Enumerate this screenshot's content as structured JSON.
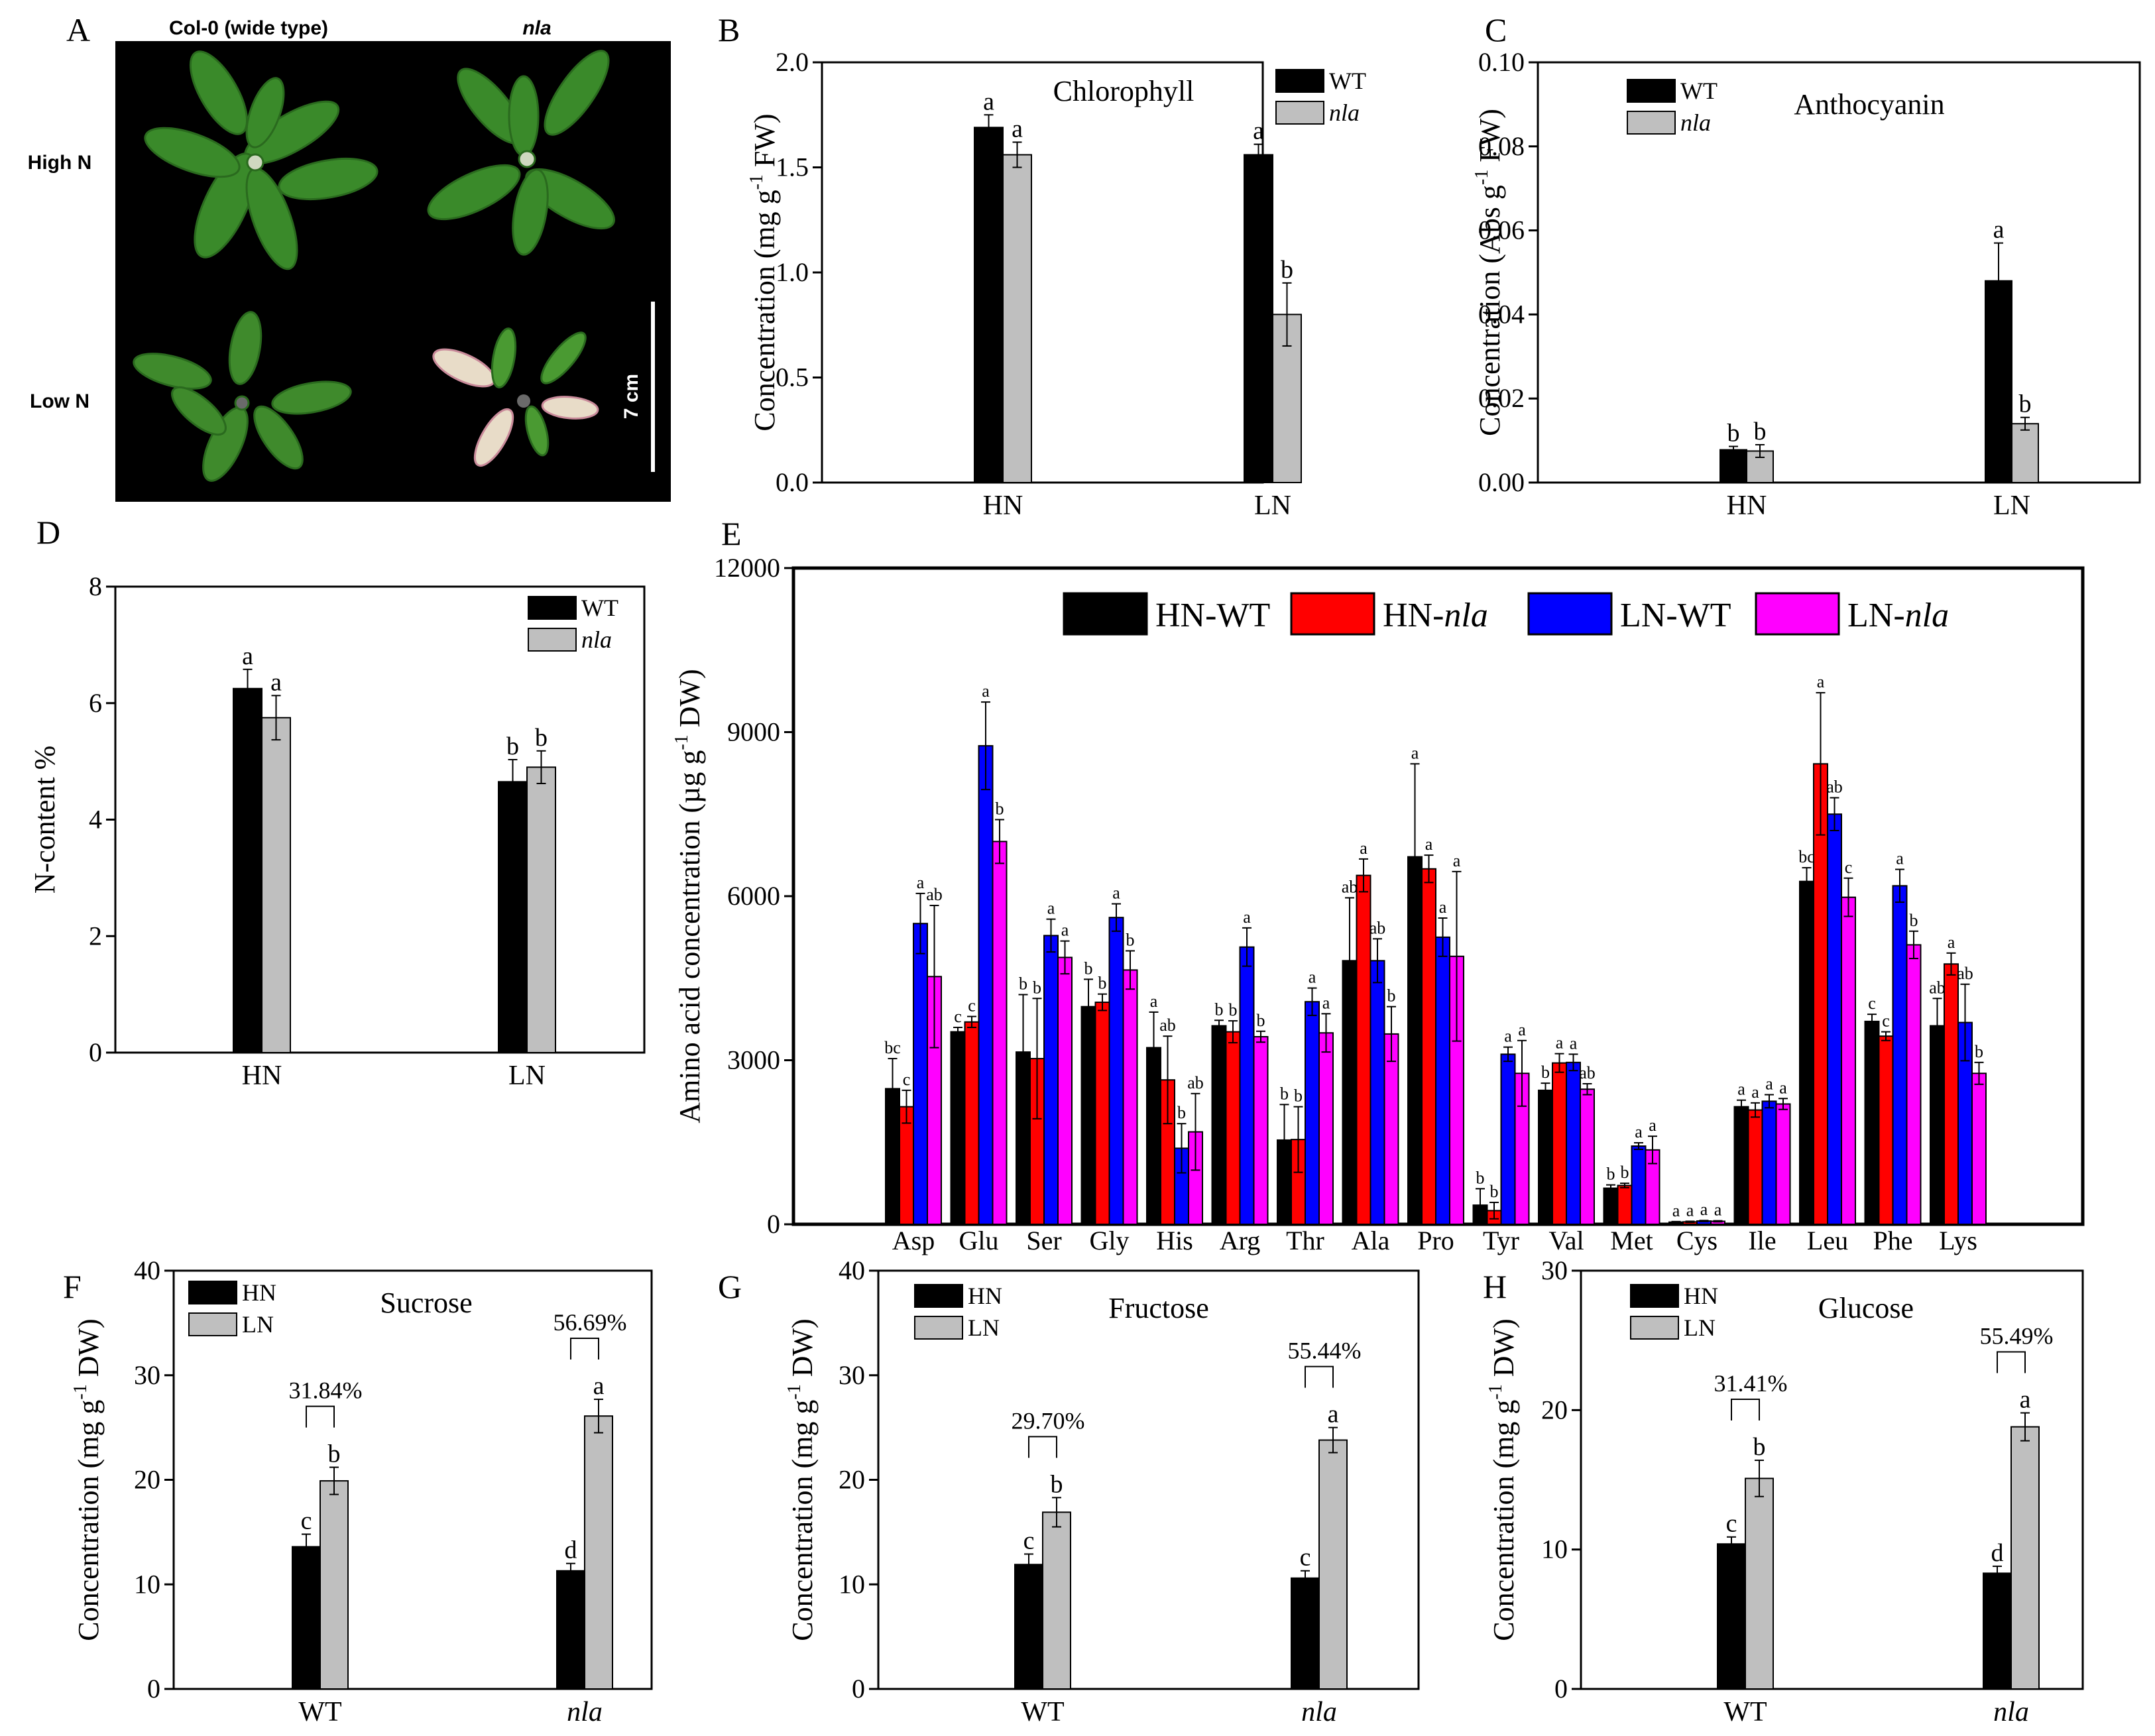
{
  "photo": {
    "letter": "A",
    "col_left": "Col-0 (wide type)",
    "col_right": "nla",
    "row_top": "High N",
    "row_bottom": "Low N",
    "scale": "7 cm"
  },
  "chart_data": [
    {
      "panel": "B",
      "type": "bar",
      "title": "Chlorophyll",
      "categories": [
        "HN",
        "LN"
      ],
      "series": [
        {
          "name": "WT",
          "color": "#000000",
          "values": [
            1.69,
            1.56
          ],
          "errors": [
            0.06,
            0.05
          ],
          "letters": [
            "a",
            "a"
          ]
        },
        {
          "name": "nla",
          "color": "#bfbfbf",
          "values": [
            1.56,
            0.8
          ],
          "errors": [
            0.06,
            0.15
          ],
          "letters": [
            "a",
            "b"
          ]
        }
      ],
      "ylabel": "Concentration (mg g-1 FW)",
      "ylabel_parts": [
        "Concentration (mg g",
        "-1",
        " FW)"
      ],
      "ylim": [
        0,
        2.0
      ],
      "yticks": [
        "0.0",
        "0.5",
        "1.0",
        "1.5",
        "2.0"
      ]
    },
    {
      "panel": "C",
      "type": "bar",
      "title": "Anthocyanin",
      "categories": [
        "HN",
        "LN"
      ],
      "series": [
        {
          "name": "WT",
          "color": "#000000",
          "values": [
            0.0078,
            0.048
          ],
          "errors": [
            0.0008,
            0.009
          ],
          "letters": [
            "b",
            "a"
          ]
        },
        {
          "name": "nla",
          "color": "#bfbfbf",
          "values": [
            0.0075,
            0.014
          ],
          "errors": [
            0.0015,
            0.0015
          ],
          "letters": [
            "b",
            "b"
          ]
        }
      ],
      "ylabel": "Concentration (Abs g-1 FW)",
      "ylabel_parts": [
        "Concentration (Abs g",
        "-1",
        " FW)"
      ],
      "ylim": [
        0,
        0.1
      ],
      "yticks": [
        "0.00",
        "0.02",
        "0.04",
        "0.06",
        "0.08",
        "0.10"
      ]
    },
    {
      "panel": "D",
      "type": "bar",
      "title": "",
      "categories": [
        "HN",
        "LN"
      ],
      "series": [
        {
          "name": "WT",
          "color": "#000000",
          "values": [
            6.25,
            4.65
          ],
          "errors": [
            0.33,
            0.38
          ],
          "letters": [
            "a",
            "b"
          ]
        },
        {
          "name": "nla",
          "color": "#bfbfbf",
          "values": [
            5.75,
            4.9
          ],
          "errors": [
            0.38,
            0.28
          ],
          "letters": [
            "a",
            "b"
          ]
        }
      ],
      "ylabel": "N-content %",
      "ylabel_parts": [
        "N-content %",
        "",
        ""
      ],
      "ylim": [
        0,
        8
      ],
      "yticks": [
        "0",
        "2",
        "4",
        "6",
        "8"
      ]
    },
    {
      "panel": "E",
      "type": "bar",
      "title": "",
      "categories": [
        "Asp",
        "Glu",
        "Ser",
        "Gly",
        "His",
        "Arg",
        "Thr",
        "Ala",
        "Pro",
        "Tyr",
        "Val",
        "Met",
        "Cys",
        "Ile",
        "Leu",
        "Phe",
        "Lys"
      ],
      "series": [
        {
          "name": "HN-WT",
          "color": "#000000",
          "values": [
            2480,
            3520,
            3150,
            3980,
            3230,
            3630,
            1540,
            4820,
            6720,
            350,
            2450,
            660,
            40,
            2150,
            6270,
            3710,
            3630
          ],
          "errors": [
            550,
            80,
            1050,
            500,
            650,
            100,
            650,
            1150,
            1700,
            300,
            130,
            60,
            10,
            120,
            250,
            130,
            500
          ],
          "letters": [
            "bc",
            "c",
            "b",
            "b",
            "a",
            "b",
            "b",
            "ab",
            "a",
            "b",
            "b",
            "b",
            "a",
            "a",
            "bc",
            "c",
            "ab"
          ]
        },
        {
          "name": "HN-nla",
          "color": "#ff0000",
          "values": [
            2150,
            3700,
            3030,
            4060,
            2640,
            3520,
            1550,
            6380,
            6500,
            250,
            2950,
            710,
            45,
            2090,
            8420,
            3440,
            4760
          ],
          "errors": [
            300,
            100,
            1100,
            150,
            800,
            200,
            600,
            300,
            250,
            150,
            170,
            40,
            10,
            130,
            1300,
            80,
            200
          ],
          "letters": [
            "c",
            "c",
            "b",
            "b",
            "ab",
            "b",
            "b",
            "a",
            "a",
            "b",
            "a",
            "b",
            "a",
            "a",
            "a",
            "c",
            "a"
          ]
        },
        {
          "name": "LN-WT",
          "color": "#0000ff",
          "values": [
            5500,
            8750,
            5280,
            5610,
            1390,
            5070,
            4070,
            4820,
            5250,
            3110,
            2960,
            1430,
            60,
            2250,
            7500,
            6190,
            3690
          ],
          "errors": [
            550,
            800,
            300,
            250,
            450,
            350,
            250,
            400,
            350,
            130,
            150,
            60,
            10,
            120,
            300,
            300,
            700
          ],
          "letters": [
            "a",
            "a",
            "a",
            "a",
            "b",
            "a",
            "a",
            "ab",
            "a",
            "a",
            "a",
            "a",
            "a",
            "a",
            "ab",
            "a",
            "ab"
          ]
        },
        {
          "name": "LN-nla",
          "color": "#ff00ff",
          "values": [
            4530,
            7000,
            4880,
            4650,
            1690,
            3430,
            3500,
            3480,
            4900,
            2760,
            2470,
            1360,
            55,
            2200,
            5980,
            5110,
            2760
          ],
          "errors": [
            1300,
            400,
            300,
            350,
            700,
            100,
            350,
            500,
            1550,
            600,
            100,
            250,
            10,
            100,
            350,
            250,
            200
          ],
          "letters": [
            "ab",
            "b",
            "a",
            "b",
            "ab",
            "b",
            "a",
            "b",
            "a",
            "a",
            "ab",
            "a",
            "a",
            "a",
            "c",
            "b",
            "b"
          ]
        }
      ],
      "ylabel": "Amino acid concentration (µg g-1 DW)",
      "ylabel_parts": [
        "Amino acid concentration (µg g",
        "-1",
        " DW)"
      ],
      "ylim": [
        0,
        12000
      ],
      "yticks": [
        "0",
        "3000",
        "6000",
        "9000",
        "12000"
      ]
    },
    {
      "panel": "F",
      "type": "bar",
      "title": "Sucrose",
      "categories": [
        "WT",
        "nla"
      ],
      "series": [
        {
          "name": "HN",
          "color": "#000000",
          "values": [
            13.6,
            11.3
          ],
          "errors": [
            1.2,
            0.7
          ],
          "letters": [
            "c",
            "d"
          ]
        },
        {
          "name": "LN",
          "color": "#bfbfbf",
          "values": [
            19.9,
            26.1
          ],
          "errors": [
            1.3,
            1.6
          ],
          "letters": [
            "b",
            "a"
          ]
        }
      ],
      "percent_increase": [
        "31.84%",
        "56.69%"
      ],
      "ylabel": "Concentration (mg g-1 DW)",
      "ylabel_parts": [
        "Concentration (mg g",
        "-1",
        " DW)"
      ],
      "ylim": [
        0,
        40
      ],
      "yticks": [
        "0",
        "10",
        "20",
        "30",
        "40"
      ]
    },
    {
      "panel": "G",
      "type": "bar",
      "title": "Fructose",
      "categories": [
        "WT",
        "nla"
      ],
      "series": [
        {
          "name": "HN",
          "color": "#000000",
          "values": [
            11.9,
            10.6
          ],
          "errors": [
            1.0,
            0.7
          ],
          "letters": [
            "c",
            "c"
          ]
        },
        {
          "name": "LN",
          "color": "#bfbfbf",
          "values": [
            16.9,
            23.8
          ],
          "errors": [
            1.4,
            1.2
          ],
          "letters": [
            "b",
            "a"
          ]
        }
      ],
      "percent_increase": [
        "29.70%",
        "55.44%"
      ],
      "ylabel": "Concentration (mg g-1 DW)",
      "ylabel_parts": [
        "Concentration (mg g",
        "-1",
        " DW)"
      ],
      "ylim": [
        0,
        40
      ],
      "yticks": [
        "0",
        "10",
        "20",
        "30",
        "40"
      ]
    },
    {
      "panel": "H",
      "type": "bar",
      "title": "Glucose",
      "categories": [
        "WT",
        "nla"
      ],
      "series": [
        {
          "name": "HN",
          "color": "#000000",
          "values": [
            10.4,
            8.3
          ],
          "errors": [
            0.5,
            0.5
          ],
          "letters": [
            "c",
            "d"
          ]
        },
        {
          "name": "LN",
          "color": "#bfbfbf",
          "values": [
            15.1,
            18.8
          ],
          "errors": [
            1.3,
            1.0
          ],
          "letters": [
            "b",
            "a"
          ]
        }
      ],
      "percent_increase": [
        "31.41%",
        "55.49%"
      ],
      "ylabel": "Concentration (mg g-1 DW)",
      "ylabel_parts": [
        "Concentration (mg g",
        "-1",
        " DW)"
      ],
      "ylim": [
        0,
        30
      ],
      "yticks": [
        "0",
        "10",
        "20",
        "30"
      ]
    }
  ]
}
